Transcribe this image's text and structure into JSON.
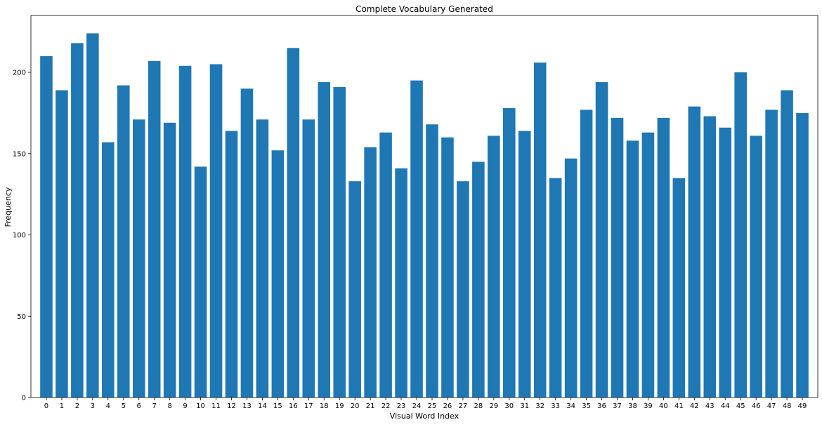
{
  "chart_data": {
    "type": "bar",
    "title": "Complete Vocabulary Generated",
    "xlabel": "Visual Word Index",
    "ylabel": "Frequency",
    "categories": [
      "0",
      "1",
      "2",
      "3",
      "4",
      "5",
      "6",
      "7",
      "8",
      "9",
      "10",
      "11",
      "12",
      "13",
      "14",
      "15",
      "16",
      "17",
      "18",
      "19",
      "20",
      "21",
      "22",
      "23",
      "24",
      "25",
      "26",
      "27",
      "28",
      "29",
      "30",
      "31",
      "32",
      "33",
      "34",
      "35",
      "36",
      "37",
      "38",
      "39",
      "40",
      "41",
      "42",
      "43",
      "44",
      "45",
      "46",
      "47",
      "48",
      "49"
    ],
    "values": [
      210,
      189,
      218,
      224,
      157,
      192,
      171,
      207,
      169,
      204,
      142,
      205,
      164,
      190,
      171,
      152,
      215,
      171,
      194,
      191,
      133,
      154,
      163,
      141,
      195,
      168,
      160,
      133,
      145,
      161,
      178,
      164,
      206,
      135,
      147,
      177,
      194,
      172,
      158,
      163,
      172,
      135,
      179,
      173,
      166,
      200,
      161,
      177,
      189,
      175
    ],
    "ylim": [
      0,
      235
    ],
    "yticks": [
      0,
      50,
      100,
      150,
      200
    ],
    "xlim": [
      -1.0,
      50.0
    ],
    "grid": false,
    "bar_color": "#1f77b4",
    "axis_color": "#000000"
  }
}
